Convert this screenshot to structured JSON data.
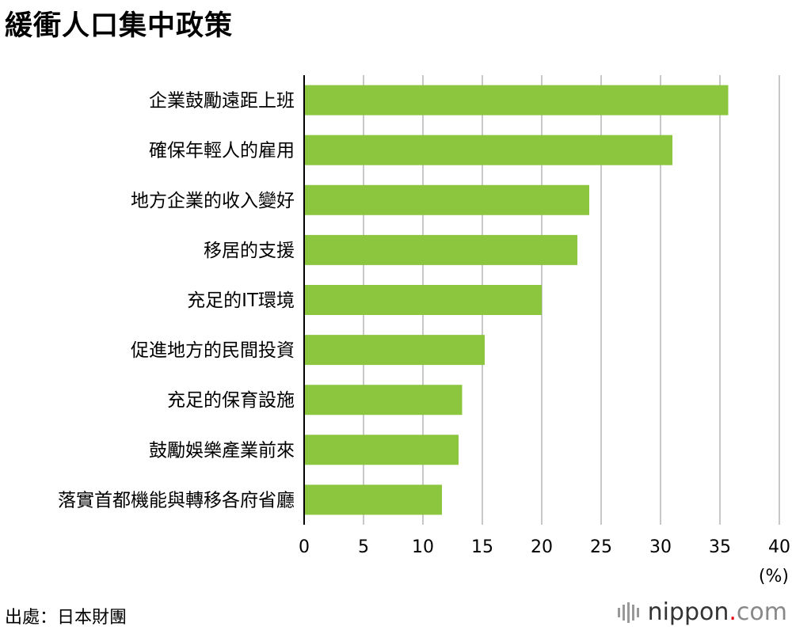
{
  "title": "緩衝人口集中政策",
  "source": "出處：日本財團",
  "logo": {
    "name": "nippon",
    "dot": ".",
    "tld": "com"
  },
  "colors": {
    "bar": "#8cc63f",
    "grid": "#c8c8c8",
    "axis": "#000000"
  },
  "chart_data": {
    "type": "bar",
    "orientation": "horizontal",
    "categories": [
      "企業鼓勵遠距上班",
      "確保年輕人的雇用",
      "地方企業的收入變好",
      "移居的支援",
      "充足的IT環境",
      "促進地方的民間投資",
      "充足的保育設施",
      "鼓勵娛樂產業前來",
      "落實首都機能與轉移各府省廳"
    ],
    "values": [
      35.7,
      31.0,
      24.0,
      23.0,
      20.0,
      15.2,
      13.3,
      13.0,
      11.6
    ],
    "xlim": [
      0,
      40
    ],
    "xticks": [
      0,
      5,
      10,
      15,
      20,
      25,
      30,
      35,
      40
    ],
    "xunit": "(%)",
    "grid": true
  }
}
